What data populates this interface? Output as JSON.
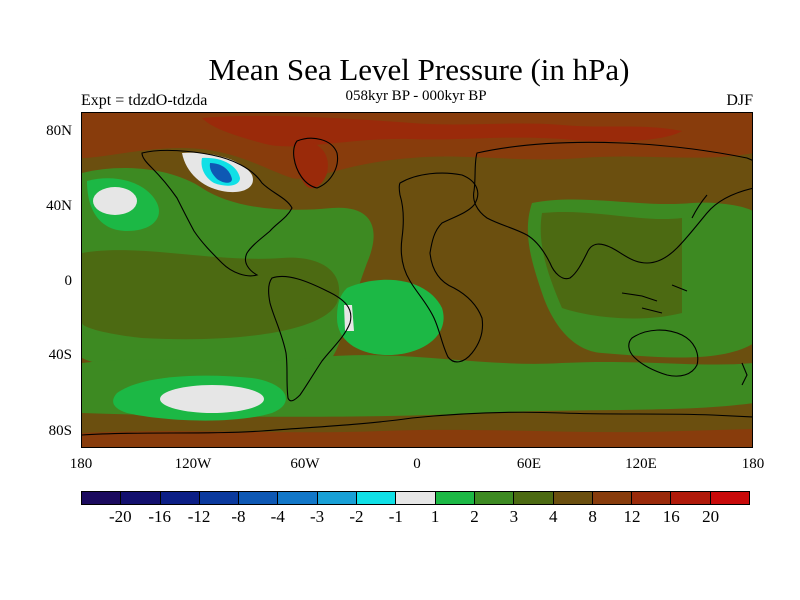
{
  "title": "Mean Sea Level Pressure (in hPa)",
  "subtitle": "058kyr BP - 000kyr BP",
  "left_label": "Expt = tdzdO-tdzda",
  "right_label": "DJF",
  "lat_labels": [
    "80N",
    "40N",
    "0",
    "40S",
    "80S"
  ],
  "lon_labels": [
    "180",
    "120W",
    "60W",
    "0",
    "60E",
    "120E",
    "180"
  ],
  "legend": {
    "colors": [
      "#1b0a5e",
      "#13106e",
      "#0c1f86",
      "#0b3a9e",
      "#0e58b4",
      "#1277c8",
      "#18a0d6",
      "#10e0e6",
      "#e6e6e6",
      "#1cb845",
      "#3d8a22",
      "#4c6a12",
      "#6b4f0f",
      "#883c0c",
      "#9a2a0a",
      "#b01a0a",
      "#c80a0a"
    ],
    "labels": [
      "-20",
      "-16",
      "-12",
      "-8",
      "-4",
      "-3",
      "-2",
      "-1",
      "1",
      "2",
      "3",
      "4",
      "8",
      "12",
      "16",
      "20"
    ]
  },
  "colors": {
    "land_brown": "#6b4f0f",
    "dark_brown": "#883c0c",
    "red": "#9a2a0a",
    "olive": "#4c6a12",
    "green": "#3d8a22",
    "bright_green": "#1cb845",
    "white": "#e6e6e6",
    "blue": "#0e58b4",
    "cyan": "#10e0e6"
  }
}
